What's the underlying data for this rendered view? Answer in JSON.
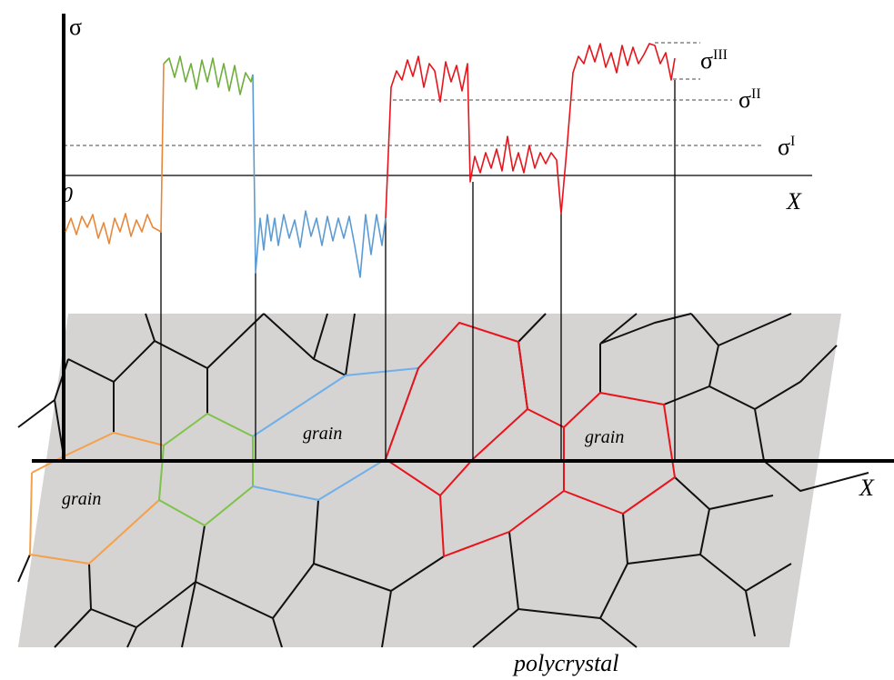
{
  "axis": {
    "y_label": "σ",
    "origin": "0",
    "x_label": "X"
  },
  "levels": [
    {
      "symbol": "σ",
      "superscript": "I"
    },
    {
      "symbol": "σ",
      "superscript": "II"
    },
    {
      "symbol": "σ",
      "superscript": "III"
    }
  ],
  "polycrystal": {
    "x_label": "X",
    "grain_labels": [
      "grain",
      "grain",
      "grain"
    ],
    "caption": "polycrystal"
  }
}
